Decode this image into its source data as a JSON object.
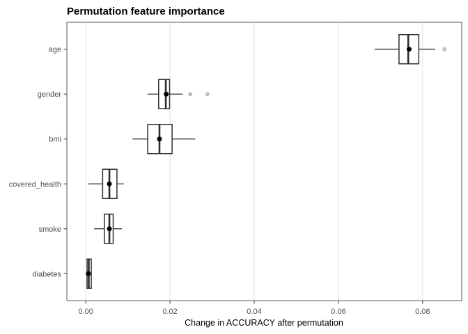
{
  "chart_data": {
    "type": "boxplot",
    "orientation": "horizontal",
    "title": "Permutation feature importance",
    "xlabel": "Change in ACCURACY after permutation",
    "ylabel": "",
    "xlim": [
      -0.0045,
      0.0893
    ],
    "xticks": [
      0,
      0.02,
      0.04,
      0.06,
      0.08
    ],
    "xtick_labels": [
      "0.00",
      "0.02",
      "0.04",
      "0.06",
      "0.08"
    ],
    "grid": "vertical-major-only",
    "legend": "none",
    "categories": [
      "age",
      "gender",
      "bmi",
      "covered_health",
      "smoke",
      "diabetes"
    ],
    "boxes": [
      {
        "feature": "age",
        "min": 0.0686,
        "q1": 0.0744,
        "median": 0.0766,
        "q3": 0.0791,
        "max": 0.083,
        "mean": 0.0768,
        "outliers": [
          0.0852
        ]
      },
      {
        "feature": "gender",
        "min": 0.0147,
        "q1": 0.0173,
        "median": 0.019,
        "q3": 0.0199,
        "max": 0.023,
        "mean": 0.0191,
        "outliers": [
          0.0248,
          0.0289
        ]
      },
      {
        "feature": "bmi",
        "min": 0.0111,
        "q1": 0.0147,
        "median": 0.0175,
        "q3": 0.0205,
        "max": 0.026,
        "mean": 0.0175,
        "outliers": []
      },
      {
        "feature": "covered_health",
        "min": 0.0006,
        "q1": 0.004,
        "median": 0.0056,
        "q3": 0.0074,
        "max": 0.009,
        "mean": 0.0056,
        "outliers": []
      },
      {
        "feature": "smoke",
        "min": 0.002,
        "q1": 0.0044,
        "median": 0.0056,
        "q3": 0.0065,
        "max": 0.0086,
        "mean": 0.0056,
        "outliers": []
      },
      {
        "feature": "diabetes",
        "min": 0.0001,
        "q1": 0.0003,
        "median": 0.0007,
        "q3": 0.0013,
        "max": 0.0014,
        "mean": 0.0006,
        "outliers": []
      }
    ],
    "colors": {
      "panel_background": "#ffffff",
      "panel_border": "#595959",
      "gridline": "#e3e3e3",
      "box_stroke": "#2e2e2e",
      "box_fill": "#ffffff",
      "median_line": "#2e2e2e",
      "whisker": "#2e2e2e",
      "mean_dot": "#000000",
      "outlier_fill": "#c4c4c4",
      "tick_mark": "#333333",
      "tick_label": "#4d4d4d",
      "title": "#000000"
    }
  }
}
